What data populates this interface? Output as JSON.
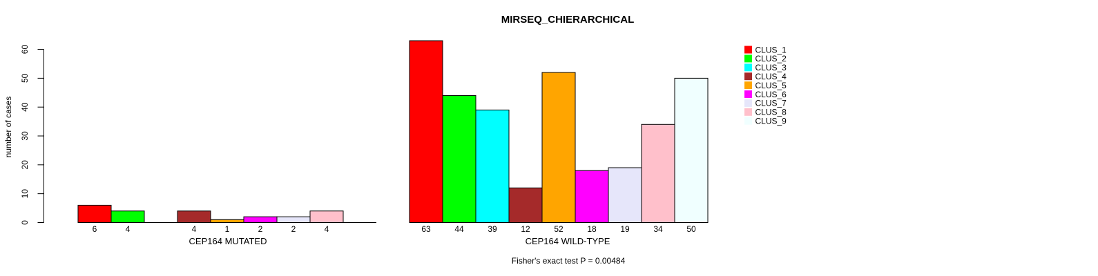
{
  "chart_data": {
    "type": "bar",
    "title": "MIRSEQ_CHIERARCHICAL",
    "ylabel": "number of cases",
    "ylim": [
      0,
      63
    ],
    "yticks": [
      0,
      10,
      20,
      30,
      40,
      50,
      60
    ],
    "grid": false,
    "legend_position": "right",
    "series_labels": [
      "CLUS_1",
      "CLUS_2",
      "CLUS_3",
      "CLUS_4",
      "CLUS_5",
      "CLUS_6",
      "CLUS_7",
      "CLUS_8",
      "CLUS_9"
    ],
    "series_colors": [
      "#FF0000",
      "#00FF00",
      "#00FFFF",
      "#A52A2A",
      "#FFA500",
      "#FF00FF",
      "#E6E6FA",
      "#FFC0CB",
      "#F0FFFF"
    ],
    "groups": [
      {
        "label": "CEP164 MUTATED",
        "values": [
          6,
          4,
          0,
          4,
          1,
          2,
          2,
          4,
          0
        ],
        "bar_labels": [
          "6",
          "4",
          "",
          "4",
          "1",
          "2",
          "2",
          "4",
          ""
        ]
      },
      {
        "label": "CEP164 WILD-TYPE",
        "values": [
          63,
          44,
          39,
          12,
          52,
          18,
          19,
          34,
          50
        ],
        "bar_labels": [
          "63",
          "44",
          "39",
          "12",
          "52",
          "18",
          "19",
          "34",
          "50"
        ]
      }
    ],
    "footnote": "Fisher's exact test P = 0.00484"
  }
}
